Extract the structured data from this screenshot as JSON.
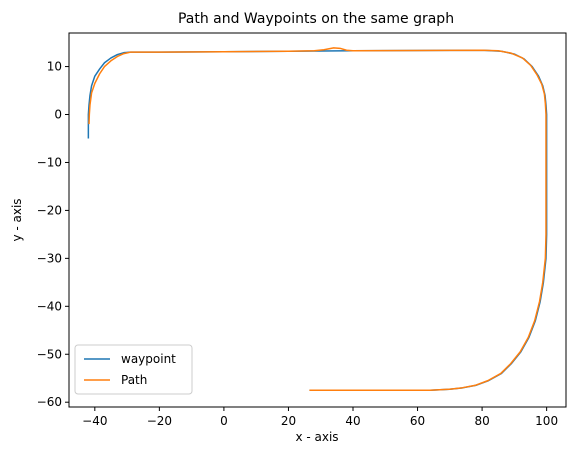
{
  "chart_data": {
    "type": "line",
    "title": "Path and Waypoints on the same graph",
    "xlabel": "x - axis",
    "ylabel": "y - axis",
    "xlim": [
      -48,
      106
    ],
    "ylim": [
      -61,
      17
    ],
    "xticks": [
      -40,
      -20,
      0,
      20,
      40,
      60,
      80,
      100
    ],
    "yticks": [
      10,
      0,
      -10,
      -20,
      -30,
      -40,
      -50,
      -60
    ],
    "grid": false,
    "legend_position": "lower-left",
    "series": [
      {
        "name": "waypoint",
        "color": "#1f77b4",
        "x": [
          -42,
          -42,
          -41.8,
          -41.5,
          -41,
          -40,
          -38.5,
          -37,
          -35,
          -33,
          -31,
          -29,
          -20,
          0,
          20,
          40,
          60,
          80,
          86,
          90,
          93,
          95.5,
          97.5,
          98.8,
          99.5,
          99.8,
          100,
          100,
          99.8,
          99,
          98,
          96.5,
          94.5,
          92,
          89,
          86,
          82,
          78,
          74,
          70,
          67,
          64,
          60,
          50,
          40,
          30,
          26.5
        ],
        "y": [
          -5,
          0,
          2,
          4,
          6,
          8,
          9.5,
          10.8,
          11.8,
          12.5,
          12.9,
          13,
          13,
          13.1,
          13.2,
          13.3,
          13.35,
          13.4,
          13.2,
          12.6,
          11.6,
          10,
          8,
          6,
          4,
          2,
          0,
          -25,
          -30,
          -35,
          -39,
          -43,
          -46.5,
          -49.5,
          -52,
          -54,
          -55.5,
          -56.5,
          -57,
          -57.3,
          -57.4,
          -57.5,
          -57.5,
          -57.5,
          -57.5,
          -57.5,
          -57.5
        ]
      },
      {
        "name": "Path",
        "color": "#ff7f0e",
        "x": [
          -41.8,
          -41.7,
          -41.5,
          -41,
          -40,
          -38.5,
          -37,
          -35,
          -33,
          -31,
          -29,
          -20,
          0,
          20,
          28,
          31,
          34,
          36,
          38,
          40,
          60,
          80,
          85,
          89,
          92.5,
          95,
          97,
          98.5,
          99.3,
          99.6,
          99.8,
          99.8,
          99.6,
          98.8,
          97.8,
          96.3,
          94.3,
          91.8,
          88.8,
          85.8,
          81.8,
          77.8,
          73.8,
          69.8,
          66.8,
          63.8,
          60,
          50,
          40,
          30,
          26.5
        ],
        "y": [
          -2,
          0,
          2,
          4.5,
          6.5,
          8.5,
          10,
          11.2,
          12.1,
          12.7,
          13,
          13,
          13.1,
          13.2,
          13.3,
          13.5,
          13.9,
          13.8,
          13.4,
          13.3,
          13.35,
          13.4,
          13.3,
          12.8,
          11.8,
          10.3,
          8.3,
          6.3,
          4.3,
          2.3,
          0,
          -25,
          -30,
          -35,
          -39,
          -43,
          -46.5,
          -49.5,
          -52,
          -54,
          -55.5,
          -56.5,
          -57,
          -57.3,
          -57.4,
          -57.5,
          -57.5,
          -57.5,
          -57.5,
          -57.5,
          -57.5
        ]
      }
    ]
  }
}
